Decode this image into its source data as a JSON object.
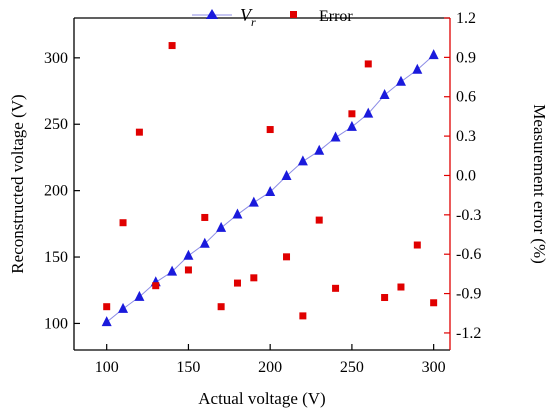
{
  "chart_data": {
    "type": "scatter",
    "title": "",
    "xlabel": "Actual voltage (V)",
    "ylabel_left": "Reconstructed voltage (V)",
    "ylabel_right": "Measurement error (%)",
    "xlim": [
      80,
      310
    ],
    "ylim_left": [
      80,
      330
    ],
    "ylim_right": [
      -1.33,
      1.2
    ],
    "x_ticks": [
      100,
      150,
      200,
      250,
      300
    ],
    "y_left_ticks": [
      100,
      150,
      200,
      250,
      300
    ],
    "y_right_ticks": [
      "1.2",
      "0.9",
      "0.6",
      "0.3",
      "0.0",
      "-0.3",
      "-0.6",
      "-0.9",
      "-1.2"
    ],
    "grid": false,
    "legend_position": "top-center",
    "colors": {
      "vr": "#1a1adc",
      "vr_line": "#8c8ce6",
      "error": "#e00000",
      "right_axis": "#e00000",
      "axis": "#000000"
    },
    "series": [
      {
        "name_prefix": "V",
        "name_sub": "r",
        "axis": "left",
        "marker": "triangle",
        "line": true,
        "x": [
          100,
          110,
          120,
          130,
          140,
          150,
          160,
          170,
          180,
          190,
          200,
          210,
          220,
          230,
          240,
          250,
          260,
          270,
          280,
          290,
          300
        ],
        "y": [
          101,
          111,
          120,
          131,
          139,
          151,
          160,
          172,
          182,
          191,
          199,
          211,
          222,
          230,
          240,
          248,
          258,
          272,
          282,
          291,
          302
        ]
      },
      {
        "name": "Error",
        "axis": "right",
        "marker": "square",
        "line": false,
        "x": [
          100,
          110,
          120,
          130,
          140,
          150,
          160,
          170,
          180,
          190,
          200,
          210,
          220,
          230,
          240,
          250,
          260,
          270,
          280,
          290,
          300
        ],
        "y": [
          -1.0,
          -0.36,
          0.33,
          -0.84,
          0.99,
          -0.72,
          -0.32,
          -1.0,
          -0.82,
          -0.78,
          0.35,
          -0.62,
          -1.07,
          -0.34,
          -0.86,
          0.47,
          0.85,
          -0.93,
          -0.85,
          -0.53,
          -0.97
        ]
      }
    ]
  }
}
